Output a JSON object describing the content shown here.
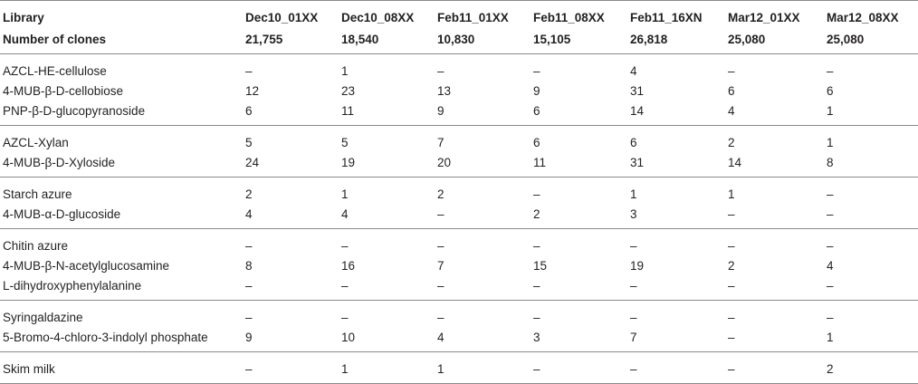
{
  "header": {
    "row_label": "Library",
    "count_label": "Number of clones",
    "libraries": [
      "Dec10_01XX",
      "Dec10_08XX",
      "Feb11_01XX",
      "Feb11_08XX",
      "Feb11_16XN",
      "Mar12_01XX",
      "Mar12_08XX"
    ],
    "clone_counts": [
      "21,755",
      "18,540",
      "10,830",
      "15,105",
      "26,818",
      "25,080",
      "25,080"
    ]
  },
  "groups": [
    {
      "rows": [
        {
          "substrate": "AZCL-HE-cellulose",
          "values": [
            "–",
            "1",
            "–",
            "–",
            "4",
            "–",
            "–"
          ]
        },
        {
          "substrate": "4-MUB-β-D-cellobiose",
          "values": [
            "12",
            "23",
            "13",
            "9",
            "31",
            "6",
            "6"
          ]
        },
        {
          "substrate": "PNP-β-D-glucopyranoside",
          "values": [
            "6",
            "11",
            "9",
            "6",
            "14",
            "4",
            "1"
          ]
        }
      ]
    },
    {
      "rows": [
        {
          "substrate": "AZCL-Xylan",
          "values": [
            "5",
            "5",
            "7",
            "6",
            "6",
            "2",
            "1"
          ]
        },
        {
          "substrate": "4-MUB-β-D-Xyloside",
          "values": [
            "24",
            "19",
            "20",
            "11",
            "31",
            "14",
            "8"
          ]
        }
      ]
    },
    {
      "rows": [
        {
          "substrate": "Starch azure",
          "values": [
            "2",
            "1",
            "2",
            "–",
            "1",
            "1",
            "–"
          ]
        },
        {
          "substrate": "4-MUB-α-D-glucoside",
          "values": [
            "4",
            "4",
            "–",
            "2",
            "3",
            "–",
            "–"
          ]
        }
      ]
    },
    {
      "rows": [
        {
          "substrate": "Chitin azure",
          "values": [
            "–",
            "–",
            "–",
            "–",
            "–",
            "–",
            "–"
          ]
        },
        {
          "substrate": "4-MUB-β-N-acetylglucosamine",
          "values": [
            "8",
            "16",
            "7",
            "15",
            "19",
            "2",
            "4"
          ]
        },
        {
          "substrate": "L-dihydroxyphenylalanine",
          "values": [
            "–",
            "–",
            "–",
            "–",
            "–",
            "–",
            "–"
          ]
        }
      ]
    },
    {
      "rows": [
        {
          "substrate": "Syringaldazine",
          "values": [
            "–",
            "–",
            "–",
            "–",
            "–",
            "–",
            "–"
          ]
        },
        {
          "substrate": "5-Bromo-4-chloro-3-indolyl phosphate",
          "values": [
            "9",
            "10",
            "4",
            "3",
            "7",
            "–",
            "1"
          ]
        }
      ]
    },
    {
      "rows": [
        {
          "substrate": "Skim milk",
          "values": [
            "–",
            "1",
            "1",
            "–",
            "–",
            "–",
            "2"
          ]
        }
      ]
    }
  ]
}
